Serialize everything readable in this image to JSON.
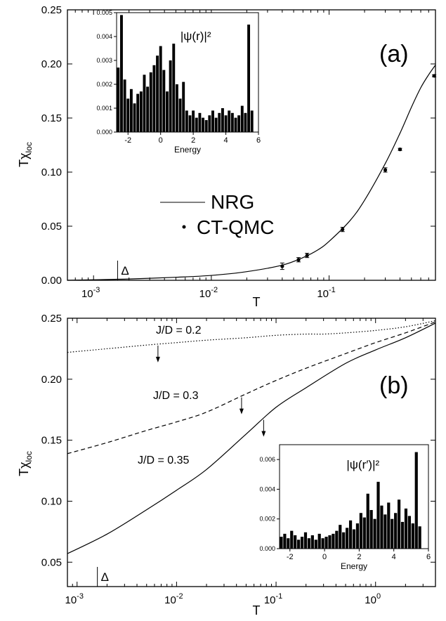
{
  "chart_data": [
    {
      "type": "line",
      "panel_label": "(a)",
      "xlabel": "T",
      "ylabel": "Tχ",
      "ylabel_sub": "loc",
      "xscale": "log",
      "xlim": [
        0.0006,
        0.8
      ],
      "ylim": [
        0.0,
        0.25
      ],
      "x_tick_labels": [
        "10",
        "10",
        "10"
      ],
      "x_tick_exponents": [
        "-3",
        "-2",
        "-1"
      ],
      "y_tick_labels": [
        "0.00",
        "0.05",
        "0.10",
        "0.15",
        "0.20",
        "0.25"
      ],
      "legend": [
        "NRG",
        "CT-QMC"
      ],
      "legend_position": "center-left",
      "marker_label": "Δ",
      "marker_x": 0.0016,
      "series": [
        {
          "name": "NRG",
          "style": "solid",
          "x": [
            0.0006,
            0.001,
            0.002,
            0.005,
            0.01,
            0.02,
            0.04,
            0.06,
            0.08,
            0.1,
            0.15,
            0.2,
            0.3,
            0.4,
            0.5,
            0.6,
            0.7,
            0.8
          ],
          "y": [
            0.0,
            0.0005,
            0.0012,
            0.0028,
            0.0045,
            0.008,
            0.014,
            0.021,
            0.028,
            0.036,
            0.055,
            0.074,
            0.108,
            0.136,
            0.16,
            0.178,
            0.19,
            0.199
          ]
        },
        {
          "name": "CT-QMC",
          "style": "points",
          "x": [
            0.04,
            0.055,
            0.065,
            0.13,
            0.3,
            0.4,
            0.78
          ],
          "y": [
            0.013,
            0.019,
            0.023,
            0.047,
            0.102,
            0.121,
            0.189
          ],
          "yerr": [
            0.003,
            0.002,
            0.002,
            0.002,
            0.002,
            0.001,
            0.001
          ]
        }
      ],
      "inset": {
        "type": "bar",
        "xlabel": "Energy",
        "annotation": "|ψ(r)|²",
        "xlim": [
          -2.7,
          6
        ],
        "ylim": [
          0,
          0.005
        ],
        "x_tick_labels": [
          "-2",
          "0",
          "2",
          "4",
          "6"
        ],
        "y_tick_labels": [
          "0.000",
          "0.001",
          "0.002",
          "0.003",
          "0.004",
          "0.005"
        ],
        "x": [
          -2.6,
          -2.4,
          -2.2,
          -2.0,
          -1.8,
          -1.6,
          -1.4,
          -1.2,
          -1.0,
          -0.8,
          -0.6,
          -0.4,
          -0.2,
          0.0,
          0.2,
          0.4,
          0.6,
          0.8,
          1.0,
          1.2,
          1.4,
          1.6,
          1.8,
          2.0,
          2.2,
          2.4,
          2.6,
          2.8,
          3.0,
          3.2,
          3.4,
          3.6,
          3.8,
          4.0,
          4.2,
          4.4,
          4.6,
          4.8,
          5.0,
          5.2,
          5.4,
          5.6
        ],
        "values": [
          0.0027,
          0.0049,
          0.0022,
          0.0014,
          0.0018,
          0.0012,
          0.0016,
          0.0017,
          0.0024,
          0.0019,
          0.0025,
          0.0028,
          0.0032,
          0.0036,
          0.0026,
          0.0017,
          0.003,
          0.0037,
          0.002,
          0.0014,
          0.0021,
          0.0009,
          0.0007,
          0.0009,
          0.0006,
          0.0008,
          0.0006,
          0.0005,
          0.0007,
          0.0009,
          0.0006,
          0.0008,
          0.001,
          0.0007,
          0.0009,
          0.0008,
          0.0006,
          0.0007,
          0.0011,
          0.0008,
          0.0045,
          0.0009
        ]
      }
    },
    {
      "type": "line",
      "panel_label": "(b)",
      "xlabel": "T",
      "ylabel": "Tχ",
      "ylabel_sub": "loc",
      "xscale": "log",
      "xlim": [
        0.0008,
        4
      ],
      "ylim": [
        0.03,
        0.25
      ],
      "x_tick_labels": [
        "10",
        "10",
        "10",
        "10"
      ],
      "x_tick_exponents": [
        "-3",
        "-2",
        "-1",
        "0"
      ],
      "y_tick_labels": [
        "0.05",
        "0.10",
        "0.15",
        "0.20",
        "0.25"
      ],
      "marker_label": "Δ",
      "marker_x": 0.0016,
      "series": [
        {
          "name": "J/D = 0.2",
          "style": "dotted",
          "x": [
            0.0008,
            0.002,
            0.005,
            0.01,
            0.02,
            0.05,
            0.1,
            0.2,
            0.3,
            0.5,
            1.0,
            2.0,
            4.0
          ],
          "y": [
            0.222,
            0.225,
            0.228,
            0.23,
            0.232,
            0.234,
            0.236,
            0.237,
            0.237,
            0.238,
            0.24,
            0.243,
            0.248
          ],
          "arrow_x": 0.0065
        },
        {
          "name": "J/D = 0.3",
          "style": "dashed",
          "x": [
            0.0008,
            0.002,
            0.005,
            0.01,
            0.02,
            0.05,
            0.1,
            0.2,
            0.5,
            1.0,
            2.0,
            4.0
          ],
          "y": [
            0.139,
            0.148,
            0.158,
            0.165,
            0.173,
            0.188,
            0.199,
            0.209,
            0.221,
            0.23,
            0.238,
            0.247
          ],
          "arrow_x": 0.045
        },
        {
          "name": "J/D = 0.35",
          "style": "solid",
          "x": [
            0.0008,
            0.002,
            0.005,
            0.01,
            0.02,
            0.05,
            0.1,
            0.2,
            0.5,
            1.0,
            2.0,
            4.0
          ],
          "y": [
            0.057,
            0.073,
            0.093,
            0.109,
            0.126,
            0.155,
            0.177,
            0.193,
            0.213,
            0.224,
            0.234,
            0.246
          ],
          "arrow_x": 0.075
        }
      ],
      "inset": {
        "type": "bar",
        "xlabel": "Energy",
        "annotation": "|ψ(r′)|²",
        "xlim": [
          -2.6,
          6
        ],
        "ylim": [
          0,
          0.007
        ],
        "x_tick_labels": [
          "-2",
          "0",
          "2",
          "4",
          "6"
        ],
        "y_tick_labels": [
          "0.000",
          "0.002",
          "0.004",
          "0.006"
        ],
        "x": [
          -2.5,
          -2.3,
          -2.1,
          -1.9,
          -1.7,
          -1.5,
          -1.3,
          -1.1,
          -0.9,
          -0.7,
          -0.5,
          -0.3,
          -0.1,
          0.1,
          0.3,
          0.5,
          0.7,
          0.9,
          1.1,
          1.3,
          1.5,
          1.7,
          1.9,
          2.1,
          2.3,
          2.5,
          2.7,
          2.9,
          3.1,
          3.3,
          3.5,
          3.7,
          3.9,
          4.1,
          4.3,
          4.5,
          4.7,
          4.9,
          5.1,
          5.3,
          5.5
        ],
        "values": [
          0.0008,
          0.001,
          0.0007,
          0.0012,
          0.0009,
          0.0006,
          0.0008,
          0.0011,
          0.0007,
          0.0009,
          0.0006,
          0.001,
          0.0007,
          0.0008,
          0.0009,
          0.001,
          0.0012,
          0.0016,
          0.0011,
          0.0014,
          0.0019,
          0.0013,
          0.0017,
          0.0024,
          0.0021,
          0.0037,
          0.0026,
          0.002,
          0.0045,
          0.0029,
          0.0023,
          0.0031,
          0.002,
          0.0024,
          0.0033,
          0.0018,
          0.0027,
          0.0022,
          0.0017,
          0.0065,
          0.0015
        ]
      }
    }
  ]
}
